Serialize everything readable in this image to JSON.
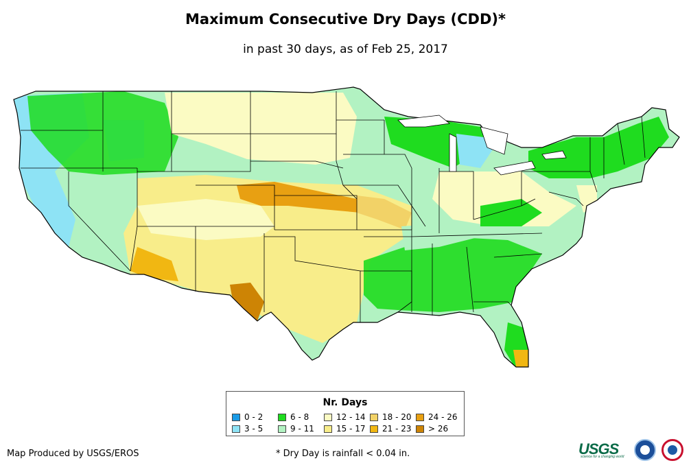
{
  "map": {
    "title": "Maximum Consecutive Dry Days (CDD)*",
    "subtitle": "in past 30 days, as of Feb 25, 2017",
    "legend": {
      "title": "Nr. Days",
      "items": [
        {
          "label": "0 - 2",
          "color": "#1a9be6"
        },
        {
          "label": "3 - 5",
          "color": "#8ee3f5"
        },
        {
          "label": "6 - 8",
          "color": "#1fdc1f"
        },
        {
          "label": "9 - 11",
          "color": "#b2f2c2"
        },
        {
          "label": "12 - 14",
          "color": "#fbfbc3"
        },
        {
          "label": "15 - 17",
          "color": "#f8ed8a"
        },
        {
          "label": "18 - 20",
          "color": "#f2d267"
        },
        {
          "label": "21 - 23",
          "color": "#f1b712"
        },
        {
          "label": "24 - 26",
          "color": "#e8a012"
        },
        {
          "label": "> 26",
          "color": "#cd8405"
        }
      ]
    },
    "credit": "Map Produced by USGS/EROS",
    "footnote": "* Dry Day is rainfall < 0.04 in.",
    "logos": {
      "usgs": "USGS",
      "usgs_tagline": "science for a changing world"
    }
  },
  "regions": {
    "pacific_northwest": "6 - 8",
    "california_coast": "3 - 5",
    "great_basin": "9 - 11",
    "northern_plains": "12 - 14",
    "central_plains": "15 - 17",
    "southwest": "15 - 17",
    "texas": "15 - 17",
    "west_texas_border": "> 26",
    "kansas_colorado": "24 - 26",
    "gulf_coast_southeast": "6 - 8",
    "ohio_valley": "9 - 11",
    "great_lakes": "3 - 5",
    "northeast": "6 - 8",
    "south_florida": "21 - 23"
  }
}
